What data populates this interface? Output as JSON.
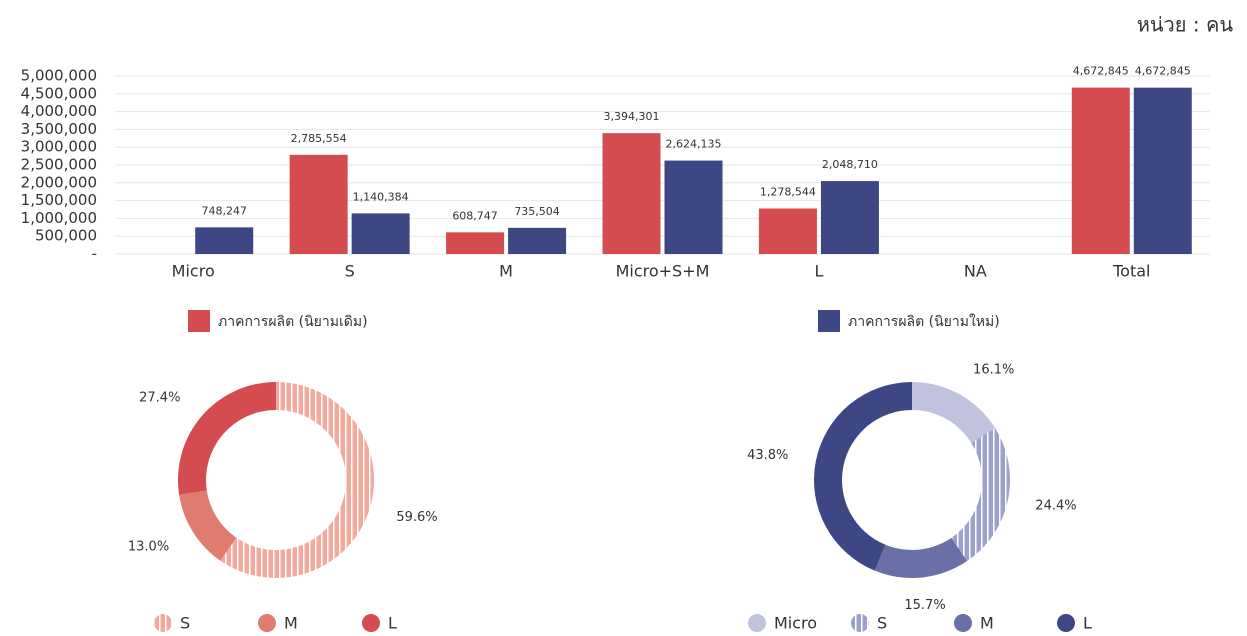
{
  "chart_data": [
    {
      "type": "bar",
      "unit": "หน่วย : คน",
      "categories": [
        "Micro",
        "S",
        "M",
        "Micro+S+M",
        "L",
        "NA",
        "Total"
      ],
      "series": [
        {
          "name": "ภาคการผลิต (นิยามเดิม)",
          "color": "#d44c4f",
          "values": [
            null,
            2785554,
            608747,
            3394301,
            1278544,
            null,
            4672845
          ],
          "value_labels": [
            null,
            "2,785,554",
            "608,747",
            "3,394,301",
            "1,278,544",
            null,
            "4,672,845"
          ]
        },
        {
          "name": "ภาคการผลิต (นิยามใหม่)",
          "color": "#3c4783",
          "values": [
            748247,
            1140384,
            735504,
            2624135,
            2048710,
            null,
            4672845
          ],
          "value_labels": [
            "748,247",
            "1,140,384",
            "735,504",
            "2,624,135",
            "2,048,710",
            null,
            "4,672,845"
          ]
        }
      ],
      "ylim": [
        0,
        5000000
      ],
      "yticks": [
        {
          "value": 0,
          "label": "-"
        },
        {
          "value": 500000,
          "label": "500,000"
        },
        {
          "value": 1000000,
          "label": "1,000,000"
        },
        {
          "value": 1500000,
          "label": "1,500,000"
        },
        {
          "value": 2000000,
          "label": "2,000,000"
        },
        {
          "value": 2500000,
          "label": "2,500,000"
        },
        {
          "value": 3000000,
          "label": "3,000,000"
        },
        {
          "value": 3500000,
          "label": "3,500,000"
        },
        {
          "value": 4000000,
          "label": "4,000,000"
        },
        {
          "value": 4500000,
          "label": "4,500,000"
        },
        {
          "value": 5000000,
          "label": "5,000,000"
        }
      ],
      "grid": true
    },
    {
      "type": "donut",
      "categories": [
        "S",
        "M",
        "L"
      ],
      "values": [
        59.6,
        13.0,
        27.4
      ],
      "value_labels": [
        "59.6%",
        "13.0%",
        "27.4%"
      ],
      "colors": [
        "#f2aa9c",
        "#e07b70",
        "#d44c4f"
      ],
      "hatched": [
        true,
        false,
        false
      ]
    },
    {
      "type": "donut",
      "categories": [
        "Micro",
        "S",
        "M",
        "L"
      ],
      "values": [
        16.1,
        24.4,
        15.7,
        43.8
      ],
      "value_labels": [
        "16.1%",
        "24.4%",
        "15.7%",
        "43.8%"
      ],
      "colors": [
        "#c0c2de",
        "#9ca0cb",
        "#6970a8",
        "#3c4783"
      ],
      "hatched": [
        false,
        true,
        false,
        false
      ]
    }
  ]
}
